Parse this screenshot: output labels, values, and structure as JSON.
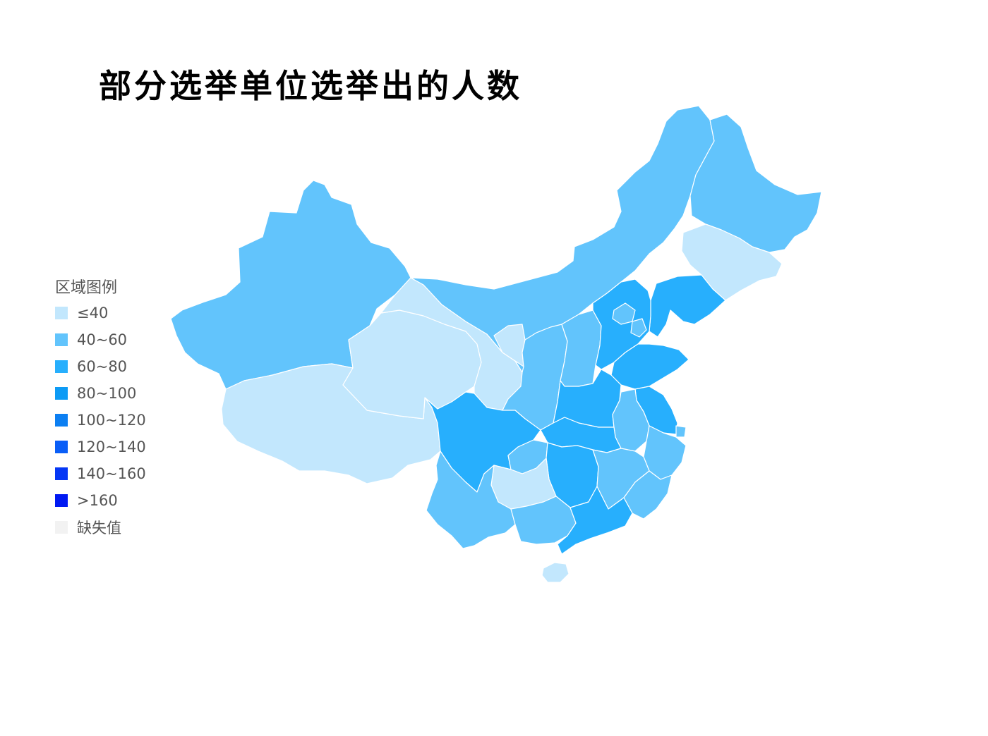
{
  "title": "部分选举单位选举出的人数",
  "legend": {
    "title": "区域图例",
    "items": [
      {
        "label": "≤40",
        "color": "#c2e7fd"
      },
      {
        "label": "40~60",
        "color": "#62c4fc"
      },
      {
        "label": "60~80",
        "color": "#27affd"
      },
      {
        "label": "80~100",
        "color": "#0d9bf5"
      },
      {
        "label": "100~120",
        "color": "#0c7ff2"
      },
      {
        "label": "120~140",
        "color": "#0a5ef7"
      },
      {
        "label": "140~160",
        "color": "#0537f5"
      },
      {
        "label": ">160",
        "color": "#0019f2"
      },
      {
        "label": "缺失值",
        "color": "#f2f2f2"
      }
    ]
  },
  "regions": [
    {
      "id": "xinjiang",
      "bin": "40~60"
    },
    {
      "id": "tibet",
      "bin": "≤40"
    },
    {
      "id": "qinghai",
      "bin": "≤40"
    },
    {
      "id": "gansu",
      "bin": "≤40"
    },
    {
      "id": "inner-mongolia",
      "bin": "40~60"
    },
    {
      "id": "heilongjiang",
      "bin": "40~60"
    },
    {
      "id": "jilin",
      "bin": "≤40"
    },
    {
      "id": "liaoning",
      "bin": "60~80"
    },
    {
      "id": "ningxia",
      "bin": "≤40"
    },
    {
      "id": "shaanxi",
      "bin": "40~60"
    },
    {
      "id": "shanxi",
      "bin": "40~60"
    },
    {
      "id": "hebei",
      "bin": "60~80"
    },
    {
      "id": "beijing",
      "bin": "40~60"
    },
    {
      "id": "tianjin",
      "bin": "40~60"
    },
    {
      "id": "shandong",
      "bin": "60~80"
    },
    {
      "id": "henan",
      "bin": "60~80"
    },
    {
      "id": "jiangsu",
      "bin": "60~80"
    },
    {
      "id": "shanghai",
      "bin": "40~60"
    },
    {
      "id": "anhui",
      "bin": "40~60"
    },
    {
      "id": "hubei",
      "bin": "60~80"
    },
    {
      "id": "sichuan",
      "bin": "60~80"
    },
    {
      "id": "chongqing",
      "bin": "40~60"
    },
    {
      "id": "zhejiang",
      "bin": "40~60"
    },
    {
      "id": "hunan",
      "bin": "60~80"
    },
    {
      "id": "jiangxi",
      "bin": "40~60"
    },
    {
      "id": "fujian",
      "bin": "40~60"
    },
    {
      "id": "guizhou",
      "bin": "≤40"
    },
    {
      "id": "yunnan",
      "bin": "40~60"
    },
    {
      "id": "guangxi",
      "bin": "40~60"
    },
    {
      "id": "guangdong",
      "bin": "60~80"
    },
    {
      "id": "hainan",
      "bin": "≤40"
    }
  ]
}
